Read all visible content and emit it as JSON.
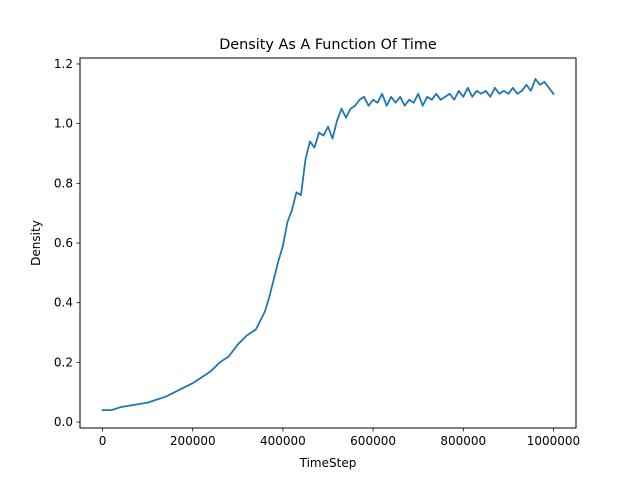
{
  "chart_data": {
    "type": "line",
    "title": "Density As A Function Of Time",
    "xlabel": "TimeStep",
    "ylabel": "Density",
    "xlim": [
      -50000,
      1050000
    ],
    "ylim": [
      -0.02,
      1.22
    ],
    "xticks": [
      0,
      200000,
      400000,
      600000,
      800000,
      1000000
    ],
    "xtick_labels": [
      "0",
      "200000",
      "400000",
      "600000",
      "800000",
      "1000000"
    ],
    "yticks": [
      0.0,
      0.2,
      0.4,
      0.6,
      0.8,
      1.0,
      1.2
    ],
    "ytick_labels": [
      "0.0",
      "0.2",
      "0.4",
      "0.6",
      "0.8",
      "1.0",
      "1.2"
    ],
    "grid": false,
    "series": [
      {
        "color": "#1f77b4",
        "x": [
          0,
          20000,
          40000,
          60000,
          80000,
          100000,
          120000,
          140000,
          160000,
          180000,
          200000,
          220000,
          240000,
          260000,
          280000,
          300000,
          320000,
          340000,
          360000,
          370000,
          380000,
          390000,
          400000,
          410000,
          420000,
          430000,
          440000,
          450000,
          460000,
          470000,
          480000,
          490000,
          500000,
          510000,
          520000,
          530000,
          540000,
          550000,
          560000,
          570000,
          580000,
          590000,
          600000,
          610000,
          620000,
          630000,
          640000,
          650000,
          660000,
          670000,
          680000,
          690000,
          700000,
          710000,
          720000,
          730000,
          740000,
          750000,
          760000,
          770000,
          780000,
          790000,
          800000,
          810000,
          820000,
          830000,
          840000,
          850000,
          860000,
          870000,
          880000,
          890000,
          900000,
          910000,
          920000,
          930000,
          940000,
          950000,
          960000,
          970000,
          980000,
          990000,
          1000000
        ],
        "y": [
          0.04,
          0.04,
          0.05,
          0.055,
          0.06,
          0.065,
          0.075,
          0.085,
          0.1,
          0.115,
          0.13,
          0.15,
          0.17,
          0.2,
          0.22,
          0.26,
          0.29,
          0.31,
          0.37,
          0.42,
          0.48,
          0.54,
          0.59,
          0.67,
          0.71,
          0.77,
          0.76,
          0.88,
          0.94,
          0.92,
          0.97,
          0.96,
          0.99,
          0.95,
          1.01,
          1.05,
          1.02,
          1.05,
          1.06,
          1.08,
          1.09,
          1.06,
          1.08,
          1.07,
          1.1,
          1.06,
          1.09,
          1.07,
          1.09,
          1.06,
          1.08,
          1.07,
          1.1,
          1.06,
          1.09,
          1.08,
          1.1,
          1.08,
          1.09,
          1.1,
          1.08,
          1.11,
          1.09,
          1.12,
          1.09,
          1.11,
          1.1,
          1.11,
          1.09,
          1.12,
          1.1,
          1.11,
          1.1,
          1.12,
          1.1,
          1.11,
          1.13,
          1.11,
          1.15,
          1.13,
          1.14,
          1.12,
          1.1
        ]
      }
    ]
  }
}
